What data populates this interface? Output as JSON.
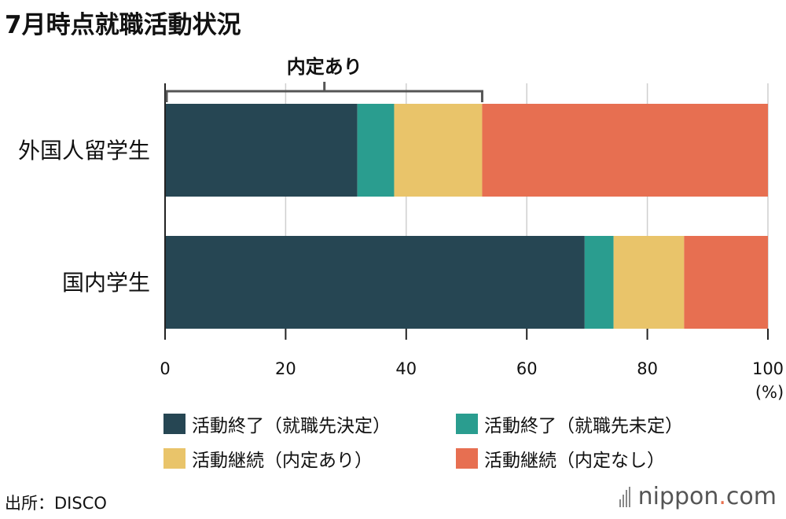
{
  "title": "7月時点就職活動状況",
  "source": "出所：DISCO",
  "logo": {
    "name": "nippon",
    "dot": ".",
    "tld": "com"
  },
  "chart_data": {
    "type": "bar",
    "orientation": "horizontal",
    "stacked": true,
    "categories": [
      "外国人留学生",
      "国内学生"
    ],
    "series": [
      {
        "name": "活動終了（就職先決定）",
        "color": "#264653",
        "values": [
          31.9,
          69.6
        ]
      },
      {
        "name": "活動終了（就職先未定）",
        "color": "#2a9d8f",
        "values": [
          6.1,
          4.8
        ]
      },
      {
        "name": "活動継続（内定あり）",
        "color": "#e9c46a",
        "values": [
          14.6,
          11.7
        ]
      },
      {
        "name": "活動継続（内定なし）",
        "color": "#e76f51",
        "values": [
          47.4,
          13.9
        ]
      }
    ],
    "xlim": [
      0,
      100
    ],
    "xticks": [
      0,
      20,
      40,
      60,
      80,
      100
    ],
    "xlabel": "(%)",
    "grid": true,
    "annotation": {
      "label": "内定あり",
      "from": 0,
      "to": 52.6,
      "category": "外国人留学生"
    }
  }
}
